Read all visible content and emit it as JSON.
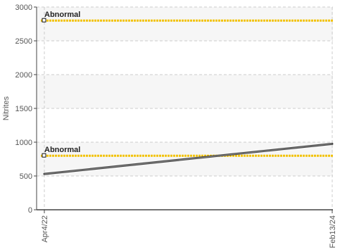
{
  "chart_data": {
    "type": "line",
    "title": "",
    "xlabel": "",
    "ylabel": "Nitrites",
    "x": [
      "Apr4/22",
      "Feb13/24"
    ],
    "series": [
      {
        "values": [
          530,
          975
        ],
        "color": "#444444"
      }
    ],
    "ylim": [
      0,
      3000
    ],
    "yticks": [
      0,
      500,
      1000,
      1500,
      2000,
      2500,
      3000
    ],
    "grid": true,
    "thresholds": [
      {
        "label": "Abnormal",
        "value": 2800,
        "color": "#f2c200"
      },
      {
        "label": "Abnormal",
        "value": 800,
        "color": "#f2c200"
      }
    ]
  }
}
